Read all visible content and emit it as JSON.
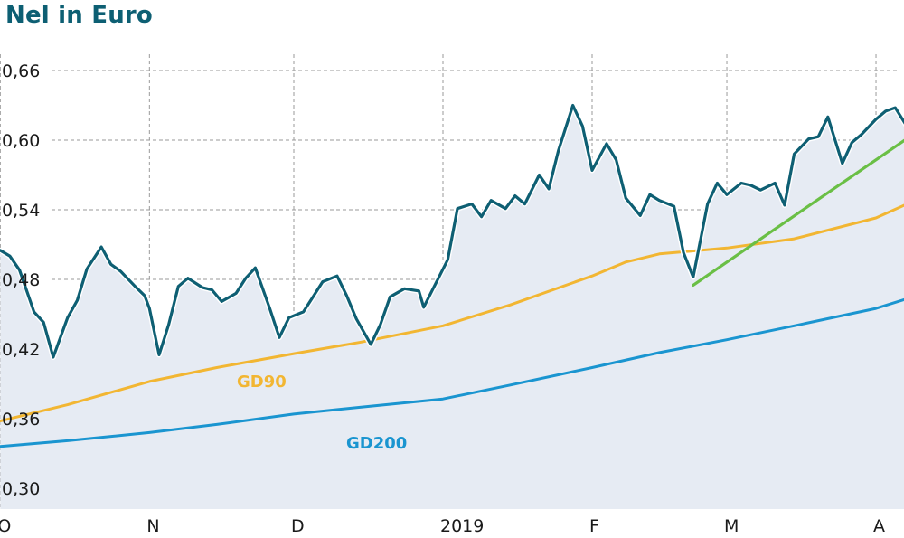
{
  "title": "Nel in Euro",
  "chart_data": {
    "type": "line",
    "title": "Nel in Euro",
    "xlabel": "",
    "ylabel": "",
    "ylim": [
      0.28,
      0.68
    ],
    "x_range": [
      "2018-10-01",
      "2019-04-08"
    ],
    "yticks": [
      "0,30",
      "0,36",
      "0,42",
      "0,48",
      "0,54",
      "0,60",
      "0,66"
    ],
    "ytick_values": [
      0.3,
      0.36,
      0.42,
      0.48,
      0.54,
      0.6,
      0.66
    ],
    "xticks": [
      "O",
      "N",
      "D",
      "2019",
      "F",
      "M",
      "A"
    ],
    "xtick_dates": [
      "2018-10-01",
      "2018-11-01",
      "2018-12-01",
      "2019-01-01",
      "2019-02-01",
      "2019-03-01",
      "2019-04-01"
    ],
    "grid": true,
    "colors": {
      "price": "#0e5f73",
      "price_fill": "#e6ebf3",
      "gd90": "#f2b632",
      "gd200": "#1a95d0",
      "trend": "#6abf45",
      "grid": "#9a9a9a",
      "title": "#0d5f73"
    },
    "series": [
      {
        "name": "",
        "role": "price",
        "x": [
          "2018-10-01",
          "2018-10-03",
          "2018-10-05",
          "2018-10-08",
          "2018-10-10",
          "2018-10-12",
          "2018-10-15",
          "2018-10-17",
          "2018-10-19",
          "2018-10-22",
          "2018-10-24",
          "2018-10-26",
          "2018-10-29",
          "2018-10-31",
          "2018-11-01",
          "2018-11-03",
          "2018-11-05",
          "2018-11-07",
          "2018-11-09",
          "2018-11-12",
          "2018-11-14",
          "2018-11-16",
          "2018-11-19",
          "2018-11-21",
          "2018-11-23",
          "2018-11-26",
          "2018-11-28",
          "2018-11-30",
          "2018-12-03",
          "2018-12-05",
          "2018-12-07",
          "2018-12-10",
          "2018-12-12",
          "2018-12-14",
          "2018-12-17",
          "2018-12-19",
          "2018-12-21",
          "2018-12-24",
          "2018-12-27",
          "2018-12-28",
          "2019-01-02",
          "2019-01-04",
          "2019-01-07",
          "2019-01-09",
          "2019-01-11",
          "2019-01-14",
          "2019-01-16",
          "2019-01-18",
          "2019-01-21",
          "2019-01-23",
          "2019-01-25",
          "2019-01-28",
          "2019-01-30",
          "2019-02-01",
          "2019-02-04",
          "2019-02-06",
          "2019-02-08",
          "2019-02-11",
          "2019-02-13",
          "2019-02-15",
          "2019-02-18",
          "2019-02-20",
          "2019-02-22",
          "2019-02-25",
          "2019-02-27",
          "2019-03-01",
          "2019-03-04",
          "2019-03-06",
          "2019-03-08",
          "2019-03-11",
          "2019-03-13",
          "2019-03-15",
          "2019-03-18",
          "2019-03-20",
          "2019-03-22",
          "2019-03-25",
          "2019-03-27",
          "2019-03-29",
          "2019-04-01",
          "2019-04-03",
          "2019-04-05",
          "2019-04-08"
        ],
        "values": [
          0.505,
          0.5,
          0.488,
          0.452,
          0.443,
          0.413,
          0.447,
          0.462,
          0.489,
          0.508,
          0.493,
          0.487,
          0.474,
          0.466,
          0.455,
          0.415,
          0.441,
          0.474,
          0.481,
          0.473,
          0.471,
          0.461,
          0.468,
          0.481,
          0.49,
          0.455,
          0.43,
          0.447,
          0.452,
          0.465,
          0.478,
          0.483,
          0.466,
          0.446,
          0.424,
          0.441,
          0.465,
          0.472,
          0.47,
          0.456,
          0.497,
          0.541,
          0.545,
          0.534,
          0.548,
          0.541,
          0.552,
          0.545,
          0.57,
          0.558,
          0.591,
          0.63,
          0.612,
          0.574,
          0.597,
          0.583,
          0.55,
          0.535,
          0.553,
          0.548,
          0.543,
          0.503,
          0.482,
          0.545,
          0.563,
          0.553,
          0.563,
          0.561,
          0.557,
          0.563,
          0.544,
          0.588,
          0.601,
          0.603,
          0.62,
          0.58,
          0.598,
          0.605,
          0.618,
          0.625,
          0.628,
          0.608
        ]
      },
      {
        "name": "GD90",
        "x": [
          "2018-10-01",
          "2018-10-15",
          "2018-11-01",
          "2018-11-15",
          "2018-12-01",
          "2018-12-15",
          "2019-01-01",
          "2019-01-15",
          "2019-02-01",
          "2019-02-08",
          "2019-02-15",
          "2019-03-01",
          "2019-03-15",
          "2019-04-01",
          "2019-04-08"
        ],
        "values": [
          0.358,
          0.372,
          0.392,
          0.404,
          0.416,
          0.426,
          0.44,
          0.458,
          0.483,
          0.495,
          0.502,
          0.507,
          0.515,
          0.533,
          0.546
        ]
      },
      {
        "name": "GD200",
        "x": [
          "2018-10-01",
          "2018-10-15",
          "2018-11-01",
          "2018-11-15",
          "2018-12-01",
          "2018-12-15",
          "2019-01-01",
          "2019-01-15",
          "2019-02-01",
          "2019-02-15",
          "2019-03-01",
          "2019-03-15",
          "2019-04-01",
          "2019-04-08"
        ],
        "values": [
          0.336,
          0.341,
          0.348,
          0.355,
          0.364,
          0.37,
          0.377,
          0.389,
          0.404,
          0.417,
          0.428,
          0.44,
          0.455,
          0.464
        ]
      },
      {
        "name": "",
        "role": "trend",
        "x": [
          "2019-02-22",
          "2019-04-08"
        ],
        "values": [
          0.475,
          0.603
        ]
      }
    ]
  }
}
